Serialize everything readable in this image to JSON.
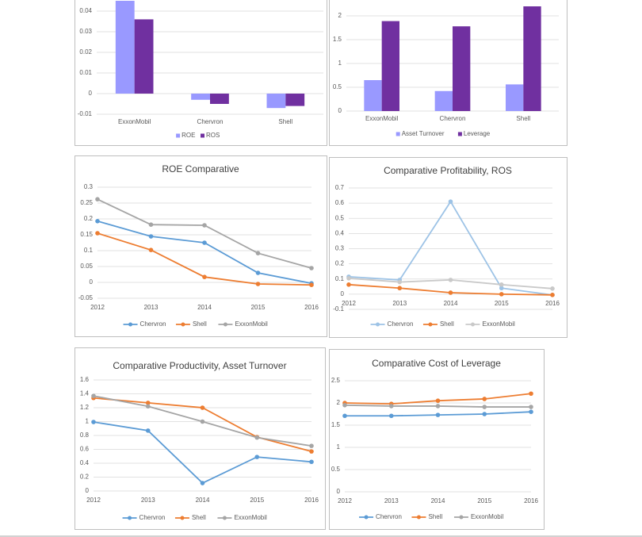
{
  "chart_data": [
    {
      "type": "bar",
      "categories": [
        "ExxonMobil",
        "Chervron",
        "Shell"
      ],
      "series": [
        {
          "name": "ROE",
          "color": "#9999ff",
          "values": [
            0.045,
            -0.003,
            -0.007
          ]
        },
        {
          "name": "ROS",
          "color": "#7030a0",
          "values": [
            0.036,
            -0.005,
            -0.006
          ]
        }
      ],
      "ylim": [
        -0.01,
        0.045
      ],
      "yticks": [
        -0.01,
        0,
        0.01,
        0.02,
        0.03,
        0.04
      ],
      "grid": true,
      "legend": "bottom"
    },
    {
      "type": "bar",
      "categories": [
        "ExxonMobil",
        "Chervron",
        "Shell"
      ],
      "series": [
        {
          "name": "Asset Turnover",
          "color": "#9999ff",
          "values": [
            0.65,
            0.42,
            0.56
          ]
        },
        {
          "name": "Leverage",
          "color": "#7030a0",
          "values": [
            1.89,
            1.78,
            2.2
          ]
        }
      ],
      "ylim": [
        0,
        2.3
      ],
      "yticks": [
        0,
        0.5,
        1,
        1.5,
        2
      ],
      "grid": true,
      "legend": "bottom"
    },
    {
      "type": "line",
      "title": "ROE Comparative",
      "categories": [
        "2012",
        "2013",
        "2014",
        "2015",
        "2016"
      ],
      "series": [
        {
          "name": "Chervron",
          "color": "#5b9bd5",
          "values": [
            0.193,
            0.145,
            0.125,
            0.03,
            -0.003
          ]
        },
        {
          "name": "Shell",
          "color": "#ed7d31",
          "values": [
            0.155,
            0.102,
            0.017,
            -0.005,
            -0.008
          ]
        },
        {
          "name": "ExxonMobil",
          "color": "#a5a5a5",
          "values": [
            0.262,
            0.182,
            0.18,
            0.092,
            0.045
          ]
        }
      ],
      "ylim": [
        -0.05,
        0.3
      ],
      "yticks": [
        -0.05,
        0,
        0.05,
        0.1,
        0.15,
        0.2,
        0.25,
        0.3
      ],
      "grid": true,
      "legend": "bottom"
    },
    {
      "type": "line",
      "title": "Comparative Profitability, ROS",
      "categories": [
        "2012",
        "2013",
        "2014",
        "2015",
        "2016"
      ],
      "series": [
        {
          "name": "Chervron",
          "color": "#9dc3e6",
          "values": [
            0.115,
            0.094,
            0.61,
            0.04,
            -0.005
          ]
        },
        {
          "name": "Shell",
          "color": "#ed7d31",
          "values": [
            0.063,
            0.04,
            0.01,
            0,
            -0.005
          ]
        },
        {
          "name": "ExxonMobil",
          "color": "#c9c9c9",
          "values": [
            0.105,
            0.08,
            0.094,
            0.063,
            0.037
          ]
        }
      ],
      "ylim": [
        -0.1,
        0.7
      ],
      "yticks": [
        -0.1,
        0,
        0.1,
        0.2,
        0.3,
        0.4,
        0.5,
        0.6,
        0.7
      ],
      "grid": true,
      "legend": "bottom"
    },
    {
      "type": "line",
      "title": "Comparative Productivity, Asset Turnover",
      "categories": [
        "2012",
        "2013",
        "2014",
        "2015",
        "2016"
      ],
      "series": [
        {
          "name": "Chervron",
          "color": "#5b9bd5",
          "values": [
            0.994,
            0.87,
            0.114,
            0.49,
            0.42
          ]
        },
        {
          "name": "Shell",
          "color": "#ed7d31",
          "values": [
            1.34,
            1.27,
            1.2,
            0.777,
            0.57
          ]
        },
        {
          "name": "ExxonMobil",
          "color": "#a5a5a5",
          "values": [
            1.37,
            1.22,
            1.0,
            0.77,
            0.65
          ]
        }
      ],
      "ylim": [
        0,
        1.6
      ],
      "yticks": [
        0,
        0.2,
        0.4,
        0.6,
        0.8,
        1,
        1.2,
        1.4,
        1.6
      ],
      "grid": true,
      "legend": "bottom"
    },
    {
      "type": "line",
      "title": "Comparative Cost of Leverage",
      "categories": [
        "2012",
        "2013",
        "2014",
        "2015",
        "2016"
      ],
      "series": [
        {
          "name": "Chervron",
          "color": "#5b9bd5",
          "values": [
            1.71,
            1.71,
            1.73,
            1.75,
            1.8
          ]
        },
        {
          "name": "Shell",
          "color": "#ed7d31",
          "values": [
            2.0,
            1.98,
            2.05,
            2.09,
            2.21
          ]
        },
        {
          "name": "ExxonMobil",
          "color": "#a5a5a5",
          "values": [
            1.95,
            1.93,
            1.93,
            1.91,
            1.91
          ]
        }
      ],
      "ylim": [
        0,
        2.5
      ],
      "yticks": [
        0,
        0.5,
        1,
        1.5,
        2,
        2.5
      ],
      "grid": true,
      "legend": "bottom"
    }
  ]
}
